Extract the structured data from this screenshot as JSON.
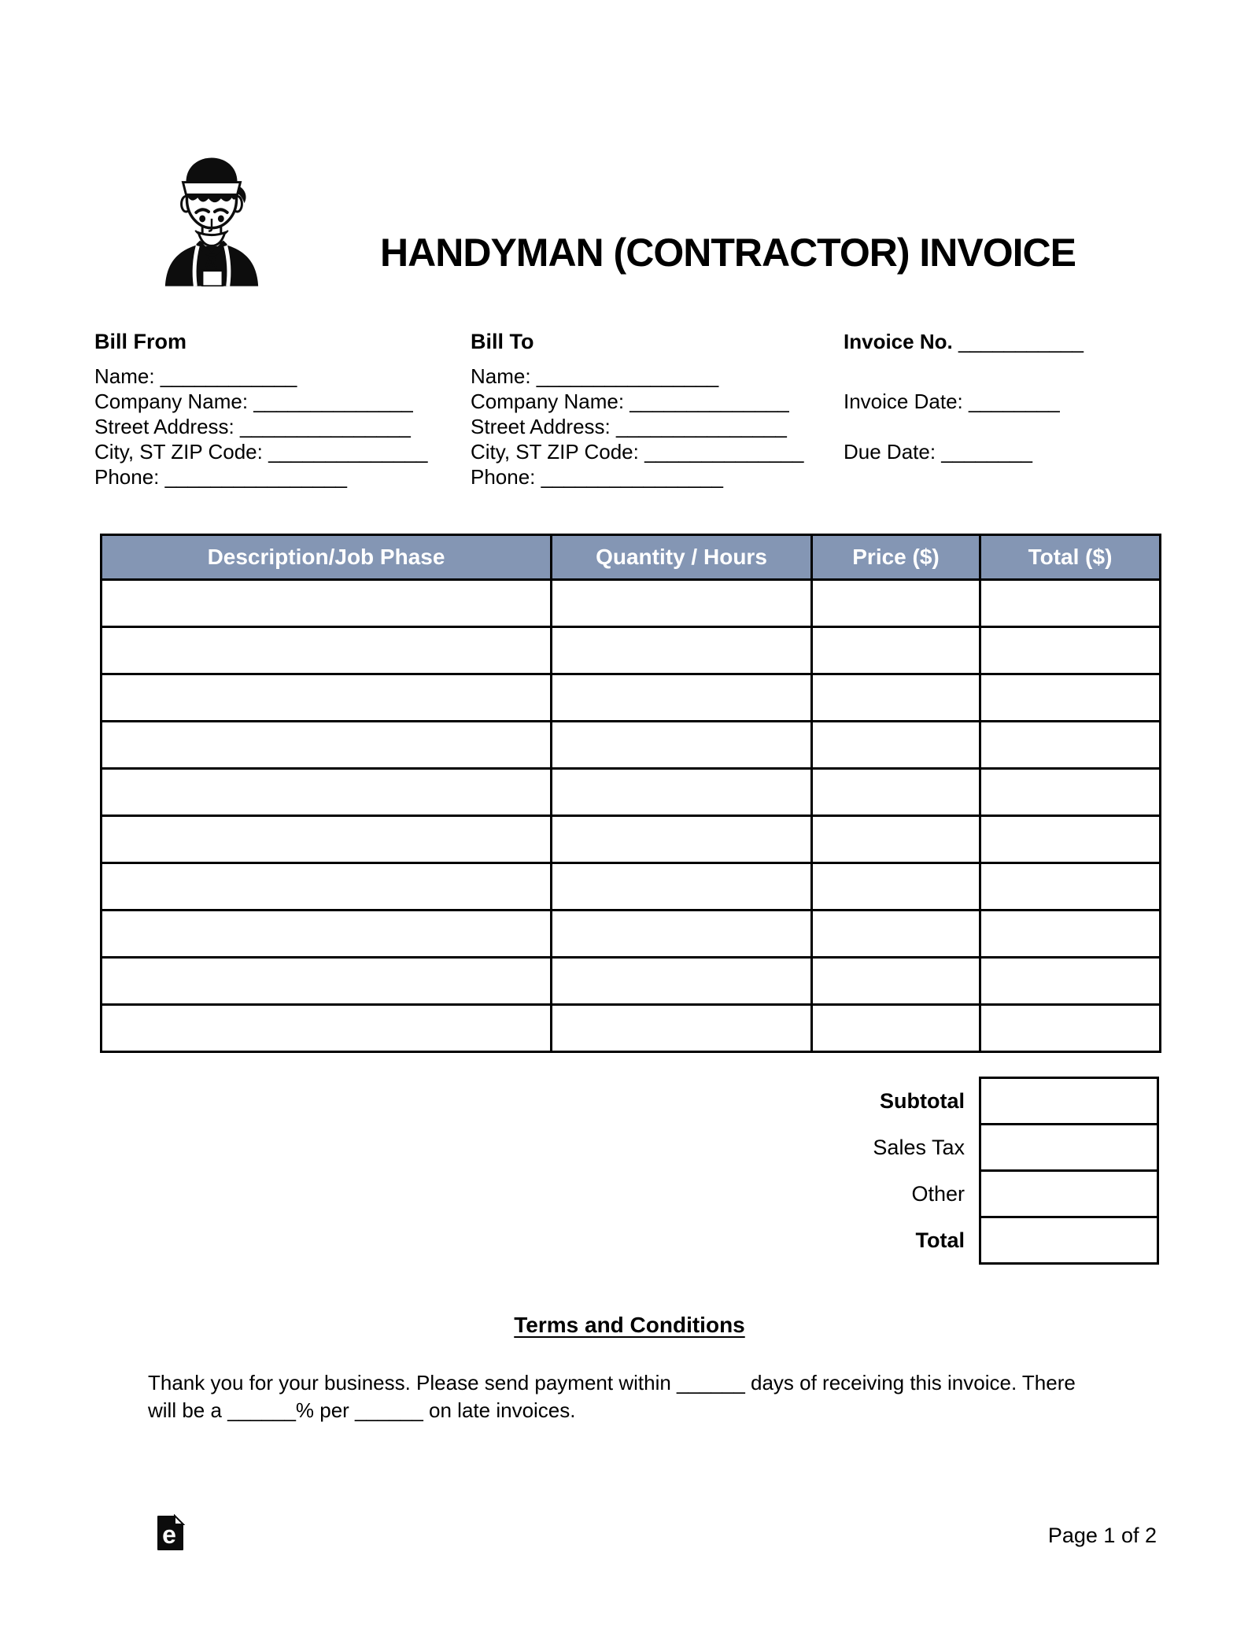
{
  "header": {
    "title": "HANDYMAN (CONTRACTOR) INVOICE"
  },
  "bill_from": {
    "heading": "Bill From",
    "fields": [
      "Name: ____________",
      "Company Name: ______________",
      "Street Address: _______________",
      "City, ST ZIP Code: ______________",
      "Phone: ________________"
    ]
  },
  "bill_to": {
    "heading": "Bill To",
    "fields": [
      "Name: ________________",
      "Company Name: ______________",
      "Street Address: _______________",
      "City, ST ZIP Code: ______________",
      "Phone: ________________"
    ]
  },
  "invoice_meta": {
    "invoice_no_label": "Invoice No.",
    "invoice_no_blank": "___________",
    "invoice_date": "Invoice Date: ________",
    "due_date": "Due Date: ________"
  },
  "table": {
    "columns": [
      "Description/Job Phase",
      "Quantity / Hours",
      "Price ($)",
      "Total ($)"
    ],
    "empty_row_count": 10,
    "header_bg": "#8496B4",
    "header_text_color": "#FFFFFF"
  },
  "summary": {
    "rows": [
      {
        "label": "Subtotal",
        "value": ""
      },
      {
        "label": "Sales Tax",
        "value": ""
      },
      {
        "label": "Other",
        "value": ""
      },
      {
        "label": "Total",
        "value": ""
      }
    ]
  },
  "terms": {
    "heading": "Terms and Conditions",
    "body_lines": [
      "Thank you for your business. Please send payment within ______ days of receiving this invoice. There",
      "will be a ______% per ______ on late invoices."
    ]
  },
  "footer": {
    "page_label": "Page 1 of 2"
  }
}
